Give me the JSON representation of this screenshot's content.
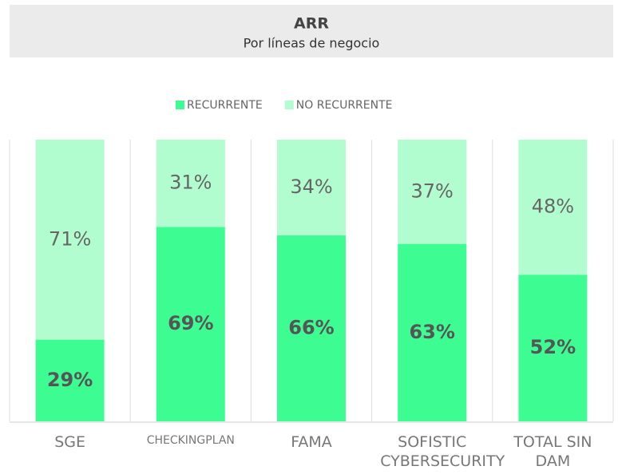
{
  "chart_data": {
    "type": "stacked_bar",
    "title": "ARR",
    "subtitle": "Por líneas de negocio",
    "categories": [
      "SGE",
      "CHECKINGPLAN",
      "FAMA",
      "SOFISTIC CYBERSECURITY",
      "TOTAL SIN DAM"
    ],
    "series": [
      {
        "name": "RECURRENTE",
        "color": "#3dfd92",
        "values": [
          29,
          69,
          66,
          63,
          52
        ],
        "value_labels": [
          "29%",
          "69%",
          "66%",
          "63%",
          "52%"
        ]
      },
      {
        "name": "NO RECURRENTE",
        "color": "#b2fdcf",
        "values": [
          71,
          31,
          34,
          37,
          48
        ],
        "value_labels": [
          "71%",
          "31%",
          "34%",
          "37%",
          "48%"
        ]
      }
    ],
    "ylim": [
      0,
      100
    ]
  }
}
